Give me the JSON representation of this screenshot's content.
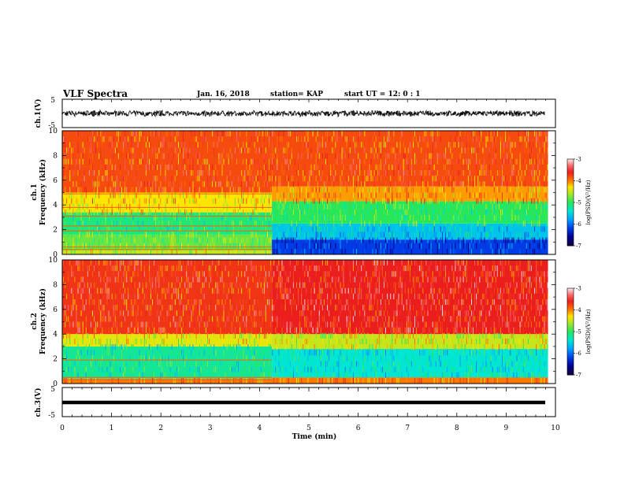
{
  "header": {
    "title": "VLF Spectra",
    "date": "Jan. 16, 2018",
    "station": "station= KAP",
    "start": "start  UT =   12: 0  : 1"
  },
  "chart_data": [
    {
      "type": "line",
      "panel": "ch1-waveform",
      "ylabel": "ch.1(V)",
      "ylim": [
        -5,
        5
      ],
      "yticks": [
        "5",
        "-5"
      ],
      "xlim": [
        0,
        10
      ],
      "amplitude_typical_V": [
        -1.2,
        1.2
      ],
      "color": "#000000"
    },
    {
      "type": "heatmap",
      "panel": "ch1-spectrogram",
      "ylabel": "ch.1\nFrequency  (kHz)",
      "ylim": [
        0,
        10
      ],
      "yticks": [
        "0",
        "2",
        "4",
        "6",
        "8",
        "10"
      ],
      "xlim": [
        0,
        9.85
      ],
      "colorbar": {
        "label": "log(PSD)(V²/Hz)",
        "range": [
          -7,
          -3
        ],
        "ticks": [
          "-3",
          "-4",
          "-5",
          "-6",
          "-7"
        ]
      },
      "regime_change_min": 4.25,
      "background_segments": [
        {
          "t": [
            0,
            4.25
          ],
          "f_kHz": [
            0,
            0.3
          ],
          "value": -4.5
        },
        {
          "t": [
            0,
            4.25
          ],
          "f_kHz": [
            0.3,
            1.6
          ],
          "value": -4.8
        },
        {
          "t": [
            0,
            4.25
          ],
          "f_kHz": [
            1.6,
            3.4
          ],
          "value": -5.1
        },
        {
          "t": [
            0,
            4.25
          ],
          "f_kHz": [
            3.4,
            5.0
          ],
          "value": -4.3
        },
        {
          "t": [
            0,
            4.25
          ],
          "f_kHz": [
            5.0,
            10
          ],
          "value": -3.8
        },
        {
          "t": [
            4.25,
            9.85
          ],
          "f_kHz": [
            0,
            1.2
          ],
          "value": -6.2
        },
        {
          "t": [
            4.25,
            9.85
          ],
          "f_kHz": [
            1.2,
            2.5
          ],
          "value": -5.6
        },
        {
          "t": [
            4.25,
            9.85
          ],
          "f_kHz": [
            2.5,
            4.3
          ],
          "value": -5.0
        },
        {
          "t": [
            4.25,
            9.85
          ],
          "f_kHz": [
            4.3,
            5.5
          ],
          "value": -4.1
        },
        {
          "t": [
            4.25,
            9.85
          ],
          "f_kHz": [
            5.5,
            10
          ],
          "value": -3.8
        }
      ],
      "narrowband_lines_kHz": [
        0.4,
        0.6,
        1.9,
        2.3,
        3.1,
        3.8,
        4.9
      ]
    },
    {
      "type": "heatmap",
      "panel": "ch2-spectrogram",
      "ylabel": "ch.2\nFrequency  (kHz)",
      "ylim": [
        0,
        10
      ],
      "yticks": [
        "0",
        "2",
        "4",
        "6",
        "8",
        "10"
      ],
      "xlim": [
        0,
        9.85
      ],
      "colorbar": {
        "label": "log(PSD)(V²/Hz)",
        "range": [
          -7,
          -3
        ],
        "ticks": [
          "-3",
          "-4",
          "-5",
          "-6",
          "-7"
        ]
      },
      "regime_change_min": 4.25,
      "background_segments": [
        {
          "t": [
            0,
            4.25
          ],
          "f_kHz": [
            0,
            0.4
          ],
          "value": -4.0
        },
        {
          "t": [
            0,
            4.25
          ],
          "f_kHz": [
            0.4,
            3.0
          ],
          "value": -5.2
        },
        {
          "t": [
            0,
            4.25
          ],
          "f_kHz": [
            3.0,
            4.0
          ],
          "value": -4.4
        },
        {
          "t": [
            0,
            4.25
          ],
          "f_kHz": [
            4.0,
            10
          ],
          "value": -3.7
        },
        {
          "t": [
            4.25,
            9.85
          ],
          "f_kHz": [
            0,
            0.5
          ],
          "value": -4.0
        },
        {
          "t": [
            4.25,
            9.85
          ],
          "f_kHz": [
            0.5,
            2.8
          ],
          "value": -5.4
        },
        {
          "t": [
            4.25,
            9.85
          ],
          "f_kHz": [
            2.8,
            4.0
          ],
          "value": -4.5
        },
        {
          "t": [
            4.25,
            9.85
          ],
          "f_kHz": [
            4.0,
            10
          ],
          "value": -3.6
        }
      ],
      "narrowband_lines_kHz": [
        0.3,
        0.5,
        1.9
      ]
    },
    {
      "type": "line",
      "panel": "ch3-waveform",
      "ylabel": "ch.3(V)",
      "ylim": [
        -5,
        5
      ],
      "yticks": [
        "5",
        "-5"
      ],
      "xlim": [
        0,
        10
      ],
      "constant_value_V": 0,
      "xlabel": "Time  (min)",
      "xticks": [
        "0",
        "1",
        "2",
        "3",
        "4",
        "5",
        "6",
        "7",
        "8",
        "9",
        "10"
      ],
      "color": "#000000"
    }
  ]
}
